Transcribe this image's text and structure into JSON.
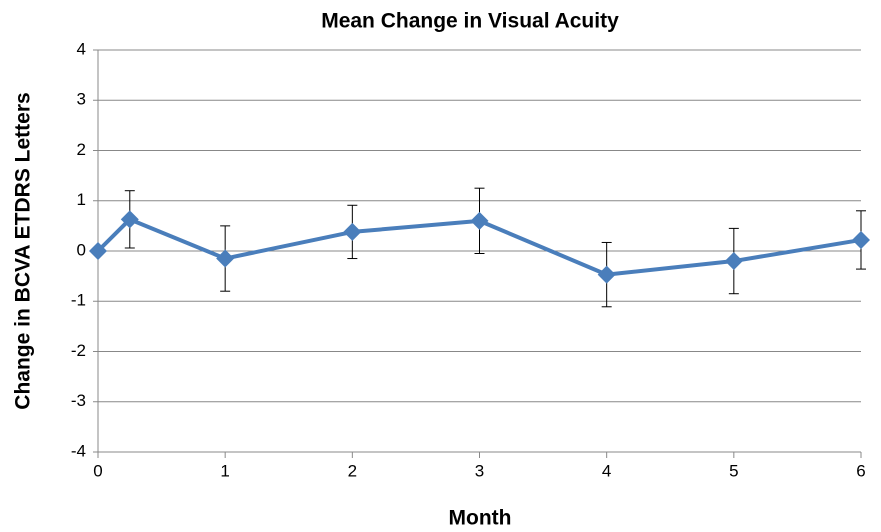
{
  "chart_data": {
    "type": "line",
    "title": "Mean Change in Visual Acuity",
    "x_label": "Month",
    "y_label": "Change in BCVA ETDRS Letters",
    "x": [
      0,
      0.25,
      1,
      2,
      3,
      4,
      5,
      6
    ],
    "values": [
      0,
      0.63,
      -0.15,
      0.38,
      0.6,
      -0.47,
      -0.2,
      0.22
    ],
    "errors": [
      null,
      0.57,
      0.65,
      0.53,
      0.65,
      0.64,
      0.65,
      0.58
    ],
    "color": "#4a7ebb",
    "xlim": [
      0,
      6
    ],
    "xticks": [
      0,
      1,
      2,
      3,
      4,
      5,
      6
    ],
    "ylim": [
      -4,
      4
    ],
    "yticks": [
      -4,
      -3,
      -2,
      -1,
      0,
      1,
      2,
      3,
      4
    ],
    "grid": true
  }
}
